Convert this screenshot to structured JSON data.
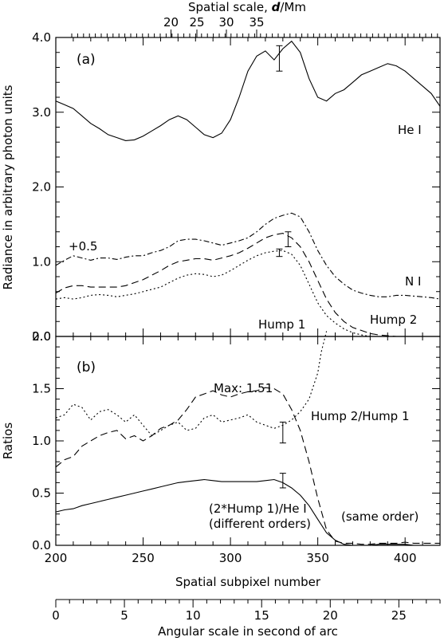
{
  "chart_data": [
    {
      "type": "line",
      "panel": "(a)",
      "ylabel": "Radiance in arbitrary photon units",
      "top_axis_label_prefix": "Spatial scale, ",
      "top_axis_label_var": "d",
      "top_axis_label_suffix": "/Mm",
      "top_ticks": [
        {
          "label": "20",
          "x": 214.5
        },
        {
          "label": "25",
          "x": 247
        },
        {
          "label": "30",
          "x": 284
        },
        {
          "label": "35",
          "x": 322
        }
      ],
      "xlim": [
        200,
        420
      ],
      "ylim": [
        0,
        4
      ],
      "yticks": [
        "0.0",
        "1.0",
        "2.0",
        "3.0",
        "4.0"
      ],
      "annotations": [
        "He I",
        "+0.5",
        "N I",
        "Hump 1",
        "Hump 2"
      ],
      "series": [
        {
          "name": "He I",
          "style": "solid",
          "x": [
            200,
            205,
            210,
            215,
            220,
            225,
            230,
            235,
            240,
            245,
            250,
            255,
            260,
            265,
            270,
            275,
            280,
            285,
            290,
            295,
            300,
            305,
            310,
            315,
            320,
            325,
            330,
            335,
            340,
            345,
            350,
            355,
            360,
            365,
            370,
            375,
            380,
            385,
            390,
            395,
            400,
            405,
            410,
            415,
            420
          ],
          "y": [
            3.15,
            3.1,
            3.05,
            2.95,
            2.85,
            2.78,
            2.7,
            2.66,
            2.62,
            2.63,
            2.68,
            2.75,
            2.82,
            2.9,
            2.95,
            2.9,
            2.8,
            2.7,
            2.66,
            2.72,
            2.9,
            3.2,
            3.55,
            3.75,
            3.82,
            3.7,
            3.85,
            3.95,
            3.8,
            3.45,
            3.2,
            3.15,
            3.25,
            3.3,
            3.4,
            3.5,
            3.55,
            3.6,
            3.65,
            3.62,
            3.55,
            3.45,
            3.35,
            3.25,
            3.08
          ]
        },
        {
          "name": "N I (+0.5)",
          "style": "dashdot",
          "x": [
            200,
            205,
            210,
            215,
            220,
            225,
            230,
            235,
            240,
            245,
            250,
            255,
            260,
            265,
            270,
            275,
            280,
            285,
            290,
            295,
            300,
            305,
            310,
            315,
            320,
            325,
            330,
            335,
            340,
            345,
            350,
            355,
            360,
            365,
            370,
            375,
            380,
            385,
            390,
            395,
            400,
            405,
            410,
            415,
            420
          ],
          "y": [
            0.95,
            1.02,
            1.08,
            1.05,
            1.02,
            1.05,
            1.05,
            1.03,
            1.06,
            1.08,
            1.08,
            1.12,
            1.15,
            1.2,
            1.28,
            1.3,
            1.3,
            1.28,
            1.25,
            1.22,
            1.25,
            1.28,
            1.32,
            1.4,
            1.5,
            1.58,
            1.62,
            1.65,
            1.6,
            1.4,
            1.15,
            0.95,
            0.8,
            0.7,
            0.62,
            0.58,
            0.55,
            0.53,
            0.53,
            0.55,
            0.55,
            0.54,
            0.53,
            0.52,
            0.5
          ]
        },
        {
          "name": "Hump 2",
          "style": "dashed",
          "x": [
            200,
            205,
            210,
            215,
            220,
            225,
            230,
            235,
            240,
            245,
            250,
            255,
            260,
            265,
            270,
            275,
            280,
            285,
            290,
            295,
            300,
            305,
            310,
            315,
            320,
            325,
            330,
            335,
            340,
            345,
            350,
            355,
            360,
            365,
            370,
            375,
            380,
            385,
            390,
            395,
            400,
            405,
            410,
            415,
            420
          ],
          "y": [
            0.58,
            0.65,
            0.68,
            0.68,
            0.66,
            0.66,
            0.66,
            0.66,
            0.68,
            0.72,
            0.76,
            0.82,
            0.88,
            0.95,
            1.0,
            1.02,
            1.04,
            1.04,
            1.02,
            1.05,
            1.08,
            1.12,
            1.18,
            1.25,
            1.32,
            1.36,
            1.38,
            1.32,
            1.2,
            1.0,
            0.75,
            0.5,
            0.32,
            0.2,
            0.12,
            0.08,
            0.04,
            0.02,
            0.01,
            0.0,
            0.0,
            0.0,
            0.0,
            0.0,
            0.0
          ]
        },
        {
          "name": "Hump 1",
          "style": "dotted",
          "x": [
            200,
            205,
            210,
            215,
            220,
            225,
            230,
            235,
            240,
            245,
            250,
            255,
            260,
            265,
            270,
            275,
            280,
            285,
            290,
            295,
            300,
            305,
            310,
            315,
            320,
            325,
            330,
            335,
            340,
            345,
            350,
            355,
            360,
            365,
            370,
            375,
            380,
            385,
            390,
            395,
            400,
            405,
            410,
            415,
            420
          ],
          "y": [
            0.5,
            0.52,
            0.5,
            0.52,
            0.55,
            0.56,
            0.55,
            0.53,
            0.55,
            0.57,
            0.6,
            0.63,
            0.66,
            0.72,
            0.78,
            0.82,
            0.84,
            0.83,
            0.8,
            0.82,
            0.88,
            0.95,
            1.02,
            1.08,
            1.12,
            1.14,
            1.15,
            1.1,
            0.95,
            0.7,
            0.45,
            0.28,
            0.18,
            0.1,
            0.05,
            0.02,
            0.0,
            0.0,
            0.0,
            0.0,
            0.0,
            0.0,
            0.0,
            0.0,
            0.0
          ]
        }
      ],
      "error_bars": [
        {
          "x": 328,
          "y": 3.72,
          "half": 0.17
        },
        {
          "x": 333,
          "y": 1.3,
          "half": 0.1
        },
        {
          "x": 328,
          "y": 1.12,
          "half": 0.05
        }
      ]
    },
    {
      "type": "line",
      "panel": "(b)",
      "ylabel": "Ratios",
      "xlabel": "Spatial subpixel number",
      "xlim": [
        200,
        420
      ],
      "ylim": [
        0,
        2
      ],
      "yticks": [
        "0.0",
        "0.5",
        "1.0",
        "1.5",
        "2.0"
      ],
      "xticks": [
        "200",
        "250",
        "300",
        "350",
        "400"
      ],
      "annotations": [
        "Max: 1.51",
        "Hump 2/Hump 1",
        "(2*Hump 1)/He I",
        "(different orders)",
        "(same order)"
      ],
      "series": [
        {
          "name": "Hump 2/Hump 1",
          "style": "dotted",
          "x": [
            200,
            205,
            210,
            215,
            220,
            225,
            230,
            235,
            240,
            245,
            250,
            255,
            260,
            265,
            270,
            275,
            280,
            285,
            290,
            295,
            300,
            305,
            310,
            315,
            320,
            325,
            330,
            335,
            340,
            345,
            350,
            352,
            355
          ],
          "y": [
            1.22,
            1.25,
            1.35,
            1.32,
            1.2,
            1.28,
            1.3,
            1.25,
            1.18,
            1.25,
            1.15,
            1.05,
            1.1,
            1.15,
            1.18,
            1.1,
            1.12,
            1.22,
            1.25,
            1.18,
            1.2,
            1.22,
            1.25,
            1.18,
            1.15,
            1.12,
            1.15,
            1.2,
            1.28,
            1.4,
            1.65,
            1.85,
            2.05
          ]
        },
        {
          "name": "Hump 2/Hump 1 (dashed)",
          "style": "dashed",
          "x": [
            200,
            205,
            210,
            215,
            220,
            225,
            230,
            235,
            240,
            245,
            250,
            255,
            260,
            265,
            270,
            275,
            280,
            285,
            290,
            295,
            300,
            305,
            310,
            315,
            320,
            325,
            330,
            335,
            340,
            345,
            350,
            355,
            360,
            365,
            370,
            375,
            380,
            385,
            390,
            395,
            400,
            405,
            410,
            415,
            420
          ],
          "y": [
            0.75,
            0.82,
            0.85,
            0.95,
            1.0,
            1.05,
            1.08,
            1.1,
            1.02,
            1.05,
            1.0,
            1.05,
            1.12,
            1.15,
            1.2,
            1.3,
            1.42,
            1.45,
            1.48,
            1.44,
            1.42,
            1.45,
            1.47,
            1.48,
            1.51,
            1.5,
            1.45,
            1.3,
            1.1,
            0.8,
            0.45,
            0.15,
            0.04,
            0.02,
            0.02,
            0.01,
            0.01,
            0.02,
            0.02,
            0.02,
            0.03,
            0.02,
            0.02,
            0.02,
            0.02
          ]
        },
        {
          "name": "(2*Hump 1)/He I",
          "style": "solid",
          "x": [
            200,
            205,
            210,
            215,
            220,
            225,
            230,
            235,
            240,
            245,
            250,
            255,
            260,
            265,
            270,
            275,
            280,
            285,
            290,
            295,
            300,
            305,
            310,
            315,
            320,
            325,
            330,
            335,
            340,
            345,
            350,
            355,
            360,
            365,
            370,
            375,
            380,
            385,
            390,
            395,
            400,
            405,
            410,
            415,
            420
          ],
          "y": [
            0.32,
            0.34,
            0.35,
            0.38,
            0.4,
            0.42,
            0.44,
            0.46,
            0.48,
            0.5,
            0.52,
            0.54,
            0.56,
            0.58,
            0.6,
            0.61,
            0.62,
            0.63,
            0.62,
            0.61,
            0.61,
            0.61,
            0.61,
            0.61,
            0.62,
            0.63,
            0.6,
            0.55,
            0.48,
            0.38,
            0.25,
            0.12,
            0.05,
            0.01,
            0.0,
            0.0,
            0.0,
            0.01,
            0.01,
            0.01,
            0.01,
            0.0,
            0.0,
            0.0,
            0.0
          ]
        }
      ],
      "error_bars": [
        {
          "x": 330,
          "y": 1.08,
          "half": 0.1
        },
        {
          "x": 330,
          "y": 0.62,
          "half": 0.07
        }
      ]
    },
    {
      "type": "axis",
      "xlabel": "Angular scale in second of arc",
      "xlim": [
        0,
        28
      ],
      "xticks": [
        "0",
        "5",
        "10",
        "15",
        "20",
        "25"
      ]
    }
  ]
}
